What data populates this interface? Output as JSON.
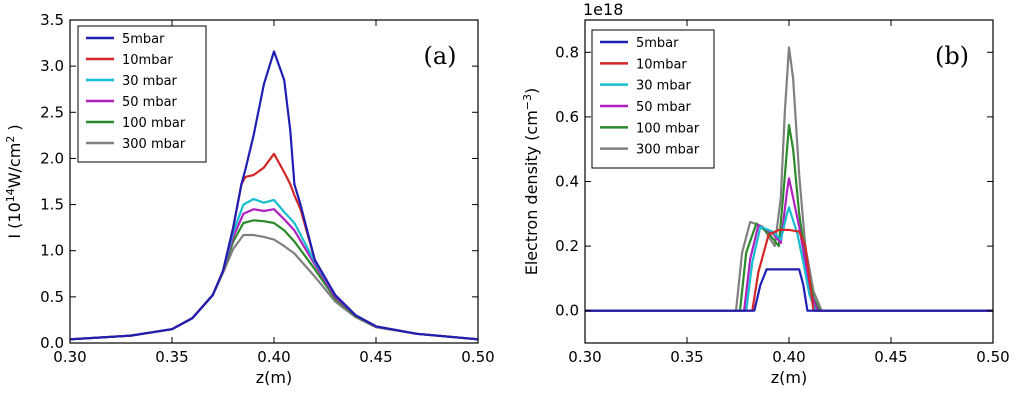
{
  "chart_data": [
    {
      "type": "line",
      "panel_label": "(a)",
      "xlabel": "z(m)",
      "ylabel": {
        "prefix": "I (10",
        "exp1": "14",
        "mid": "W/cm",
        "exp2": "2",
        "suffix": " )"
      },
      "xlim": [
        0.3,
        0.5
      ],
      "ylim": [
        0.0,
        3.5
      ],
      "xticks": [
        "0.30",
        "0.35",
        "0.40",
        "0.45",
        "0.50"
      ],
      "yticks": [
        "0.0",
        "0.5",
        "1.0",
        "1.5",
        "2.0",
        "2.5",
        "3.0",
        "3.5"
      ],
      "legend_position": "top-left",
      "series": [
        {
          "name": "5mbar",
          "color": "#1f1fb4",
          "x": [
            0.3,
            0.33,
            0.35,
            0.36,
            0.37,
            0.375,
            0.38,
            0.384,
            0.386,
            0.39,
            0.395,
            0.4,
            0.405,
            0.408,
            0.41,
            0.413,
            0.42,
            0.43,
            0.44,
            0.45,
            0.47,
            0.5
          ],
          "y": [
            0.04,
            0.08,
            0.15,
            0.27,
            0.52,
            0.78,
            1.25,
            1.72,
            1.88,
            2.25,
            2.8,
            3.16,
            2.85,
            2.3,
            1.72,
            1.5,
            0.9,
            0.52,
            0.3,
            0.18,
            0.1,
            0.04
          ]
        },
        {
          "name": "10mbar",
          "color": "#d62728",
          "x": [
            0.3,
            0.33,
            0.35,
            0.36,
            0.37,
            0.375,
            0.38,
            0.384,
            0.386,
            0.39,
            0.395,
            0.4,
            0.405,
            0.408,
            0.41,
            0.413,
            0.42,
            0.43,
            0.44,
            0.45,
            0.47,
            0.5
          ],
          "y": [
            0.04,
            0.08,
            0.15,
            0.27,
            0.52,
            0.78,
            1.25,
            1.72,
            1.8,
            1.82,
            1.9,
            2.05,
            1.85,
            1.72,
            1.6,
            1.45,
            0.9,
            0.52,
            0.3,
            0.18,
            0.1,
            0.04
          ]
        },
        {
          "name": "30 mbar",
          "color": "#17becf",
          "x": [
            0.3,
            0.33,
            0.35,
            0.36,
            0.37,
            0.375,
            0.38,
            0.385,
            0.39,
            0.395,
            0.4,
            0.405,
            0.41,
            0.42,
            0.43,
            0.44,
            0.45,
            0.47,
            0.5
          ],
          "y": [
            0.04,
            0.08,
            0.15,
            0.27,
            0.52,
            0.78,
            1.2,
            1.5,
            1.56,
            1.52,
            1.55,
            1.42,
            1.3,
            0.88,
            0.52,
            0.3,
            0.18,
            0.1,
            0.04
          ]
        },
        {
          "name": "50 mbar",
          "color": "#b020c0",
          "x": [
            0.3,
            0.33,
            0.35,
            0.36,
            0.37,
            0.375,
            0.38,
            0.385,
            0.39,
            0.395,
            0.4,
            0.405,
            0.41,
            0.42,
            0.43,
            0.44,
            0.45,
            0.47,
            0.5
          ],
          "y": [
            0.04,
            0.08,
            0.15,
            0.27,
            0.52,
            0.78,
            1.15,
            1.4,
            1.45,
            1.43,
            1.45,
            1.34,
            1.22,
            0.85,
            0.5,
            0.3,
            0.18,
            0.1,
            0.04
          ]
        },
        {
          "name": "100 mbar",
          "color": "#2a8a2a",
          "x": [
            0.3,
            0.33,
            0.35,
            0.36,
            0.37,
            0.375,
            0.38,
            0.385,
            0.39,
            0.395,
            0.4,
            0.405,
            0.41,
            0.42,
            0.43,
            0.44,
            0.45,
            0.47,
            0.5
          ],
          "y": [
            0.04,
            0.08,
            0.15,
            0.27,
            0.52,
            0.78,
            1.1,
            1.3,
            1.33,
            1.32,
            1.3,
            1.22,
            1.1,
            0.8,
            0.48,
            0.29,
            0.18,
            0.1,
            0.04
          ]
        },
        {
          "name": "300 mbar",
          "color": "#808080",
          "x": [
            0.3,
            0.33,
            0.35,
            0.36,
            0.37,
            0.375,
            0.38,
            0.385,
            0.39,
            0.395,
            0.4,
            0.405,
            0.41,
            0.42,
            0.43,
            0.44,
            0.45,
            0.47,
            0.5
          ],
          "y": [
            0.04,
            0.08,
            0.15,
            0.27,
            0.52,
            0.76,
            1.02,
            1.17,
            1.17,
            1.15,
            1.12,
            1.05,
            0.97,
            0.72,
            0.45,
            0.28,
            0.17,
            0.1,
            0.04
          ]
        }
      ]
    },
    {
      "type": "line",
      "panel_label": "(b)",
      "xlabel": "z(m)",
      "ylabel": {
        "prefix": "Electron density (cm",
        "exp1": "−3",
        "suffix": ")"
      },
      "offset_text": "1e18",
      "xlim": [
        0.3,
        0.5
      ],
      "ylim": [
        -0.1,
        0.9
      ],
      "xticks": [
        "0.30",
        "0.35",
        "0.40",
        "0.45",
        "0.50"
      ],
      "yticks": [
        "0.0",
        "0.2",
        "0.4",
        "0.6",
        "0.8"
      ],
      "legend_position": "top-left",
      "series": [
        {
          "name": "5mbar",
          "color": "#1f1fb4",
          "x": [
            0.3,
            0.383,
            0.386,
            0.389,
            0.405,
            0.407,
            0.409,
            0.5
          ],
          "y": [
            0.0,
            0.0,
            0.08,
            0.128,
            0.128,
            0.08,
            0.0,
            0.0
          ]
        },
        {
          "name": "10mbar",
          "color": "#d62728",
          "x": [
            0.3,
            0.382,
            0.385,
            0.39,
            0.395,
            0.4,
            0.405,
            0.408,
            0.41,
            0.412,
            0.5
          ],
          "y": [
            0.0,
            0.0,
            0.12,
            0.235,
            0.25,
            0.25,
            0.245,
            0.2,
            0.1,
            0.0,
            0.0
          ]
        },
        {
          "name": "30 mbar",
          "color": "#17becf",
          "x": [
            0.3,
            0.379,
            0.382,
            0.386,
            0.392,
            0.396,
            0.399,
            0.4,
            0.401,
            0.404,
            0.407,
            0.41,
            0.413,
            0.5
          ],
          "y": [
            0.0,
            0.0,
            0.15,
            0.26,
            0.245,
            0.22,
            0.3,
            0.32,
            0.3,
            0.24,
            0.15,
            0.05,
            0.0,
            0.0
          ]
        },
        {
          "name": "50 mbar",
          "color": "#b020c0",
          "x": [
            0.3,
            0.378,
            0.381,
            0.385,
            0.392,
            0.396,
            0.399,
            0.4,
            0.402,
            0.405,
            0.408,
            0.411,
            0.414,
            0.5
          ],
          "y": [
            0.0,
            0.0,
            0.16,
            0.265,
            0.24,
            0.21,
            0.37,
            0.41,
            0.35,
            0.26,
            0.15,
            0.05,
            0.0,
            0.0
          ]
        },
        {
          "name": "100 mbar",
          "color": "#2a8a2a",
          "x": [
            0.3,
            0.376,
            0.379,
            0.384,
            0.39,
            0.395,
            0.398,
            0.4,
            0.402,
            0.405,
            0.409,
            0.412,
            0.415,
            0.5
          ],
          "y": [
            0.0,
            0.0,
            0.18,
            0.27,
            0.24,
            0.2,
            0.42,
            0.575,
            0.5,
            0.3,
            0.12,
            0.04,
            0.0,
            0.0
          ]
        },
        {
          "name": "300 mbar",
          "color": "#808080",
          "x": [
            0.3,
            0.374,
            0.377,
            0.381,
            0.387,
            0.393,
            0.396,
            0.398,
            0.4,
            0.402,
            0.405,
            0.408,
            0.412,
            0.416,
            0.5
          ],
          "y": [
            0.0,
            0.0,
            0.18,
            0.275,
            0.26,
            0.2,
            0.35,
            0.62,
            0.815,
            0.72,
            0.42,
            0.2,
            0.06,
            0.0,
            0.0
          ]
        }
      ]
    }
  ]
}
